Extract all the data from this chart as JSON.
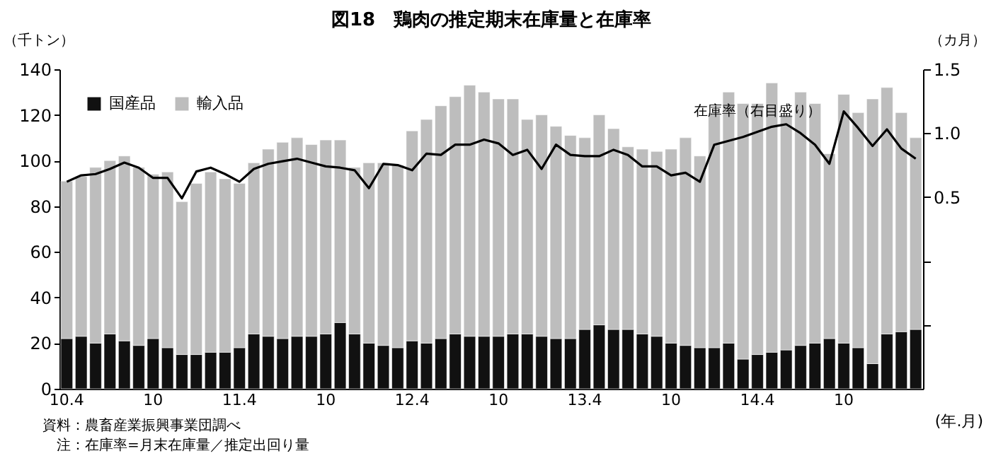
{
  "chart_data": {
    "type": "bar",
    "title": "図18　鶏肉の推定期末在庫量と在庫率",
    "ylabel": "（千トン）",
    "y2label": "（カ月）",
    "xlabel": "(年.月)",
    "categories": [
      "10.4",
      null,
      null,
      null,
      null,
      null,
      "10",
      null,
      null,
      null,
      null,
      null,
      "11.4",
      null,
      null,
      null,
      null,
      null,
      "10",
      null,
      null,
      null,
      null,
      null,
      "12.4",
      null,
      null,
      null,
      null,
      null,
      "10",
      null,
      null,
      null,
      null,
      null,
      "13.4",
      null,
      null,
      null,
      null,
      null,
      "10",
      null,
      null,
      null,
      null,
      null,
      "14.4",
      null,
      null,
      null,
      null,
      null,
      "10",
      null,
      null,
      null,
      null,
      null
    ],
    "stacked": true,
    "series": [
      {
        "name": "国産品",
        "color": "#111111",
        "values": [
          22,
          23,
          20,
          24,
          21,
          19,
          22,
          18,
          15,
          15,
          16,
          16,
          18,
          24,
          23,
          22,
          23,
          23,
          24,
          29,
          24,
          20,
          19,
          18,
          21,
          20,
          22,
          24,
          23,
          23,
          23,
          24,
          24,
          23,
          22,
          22,
          26,
          28,
          26,
          26,
          24,
          23,
          20,
          19,
          18,
          18,
          20,
          13,
          15,
          16,
          17,
          19,
          20,
          22,
          20,
          18,
          11,
          24,
          25,
          26
        ]
      },
      {
        "name": "輸入品",
        "color": "#bdbdbd",
        "values": [
          69,
          70,
          77,
          76,
          81,
          78,
          72,
          77,
          67,
          75,
          79,
          76,
          72,
          75,
          82,
          86,
          87,
          84,
          85,
          80,
          73,
          79,
          80,
          80,
          92,
          98,
          102,
          104,
          110,
          107,
          104,
          103,
          94,
          97,
          93,
          89,
          84,
          92,
          88,
          80,
          81,
          81,
          85,
          91,
          84,
          103,
          110,
          112,
          110,
          118,
          103,
          111,
          105,
          81,
          109,
          103,
          116,
          108,
          96,
          84
        ]
      },
      {
        "name": "在庫率（右目盛り）",
        "type": "line",
        "axis": "y2",
        "color": "#000000",
        "values": [
          0.62,
          0.67,
          0.68,
          0.72,
          0.77,
          0.73,
          0.65,
          0.65,
          0.49,
          0.7,
          0.73,
          0.68,
          0.62,
          0.72,
          0.76,
          0.78,
          0.8,
          0.77,
          0.74,
          0.73,
          0.71,
          0.57,
          0.76,
          0.75,
          0.71,
          0.84,
          0.83,
          0.91,
          0.91,
          0.95,
          0.92,
          0.83,
          0.87,
          0.72,
          0.91,
          0.83,
          0.82,
          0.82,
          0.87,
          0.83,
          0.74,
          0.74,
          0.67,
          0.69,
          0.62,
          0.91,
          0.94,
          0.97,
          1.01,
          1.05,
          1.07,
          1.0,
          0.91,
          0.76,
          1.17,
          1.04,
          0.9,
          1.03,
          0.88,
          0.8
        ]
      }
    ],
    "ylim": [
      0,
      140
    ],
    "yticks": [
      0,
      20,
      40,
      60,
      80,
      100,
      120,
      140
    ],
    "y2lim": [
      -1,
      1.5
    ],
    "y2ticks": [
      {
        "value": -0.5,
        "label": null
      },
      {
        "value": 0,
        "label": null
      },
      0.5,
      {
        "value": 1,
        "label": "1.0"
      },
      1.5
    ],
    "legend": "top left",
    "annotations": [
      "資料：農畜産業振興事業団調べ",
      "注：在庫率=月末在庫量／推定出回り量"
    ]
  }
}
